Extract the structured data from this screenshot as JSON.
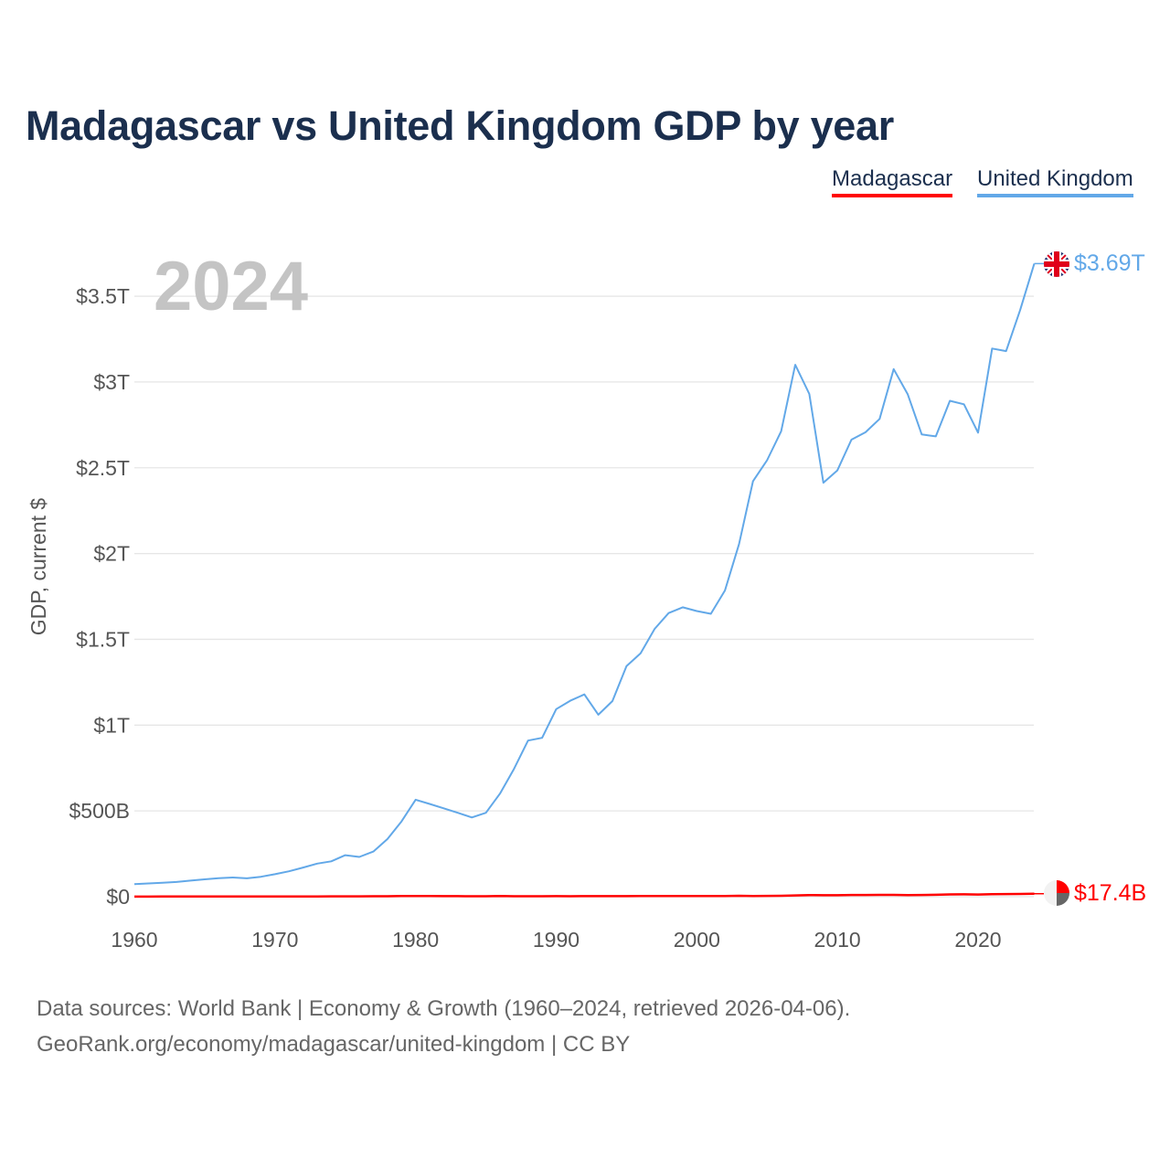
{
  "title": "Madagascar vs United Kingdom GDP by year",
  "legend": [
    {
      "name": "Madagascar",
      "color": "#ff0000"
    },
    {
      "name": "United Kingdom",
      "color": "#62a8e8"
    }
  ],
  "footer": {
    "line1": "Data sources: World Bank | Economy & Growth (1960–2024, retrieved 2026-04-06).",
    "line2": "GeoRank.org/economy/madagascar/united-kingdom | CC BY"
  },
  "chart_data": {
    "type": "line",
    "title": "Madagascar vs United Kingdom GDP by year",
    "year_label": "2024",
    "xlabel": "",
    "ylabel": "GDP, current $",
    "xlim": [
      1960,
      2024
    ],
    "ylim": [
      0,
      3.7
    ],
    "y_unit": "trillion USD",
    "x_ticks": [
      "1960",
      "1970",
      "1980",
      "1990",
      "2000",
      "2010",
      "2020"
    ],
    "y_ticks": [
      {
        "value": 0,
        "label": "$0"
      },
      {
        "value": 0.5,
        "label": "$500B"
      },
      {
        "value": 1,
        "label": "$1T"
      },
      {
        "value": 1.5,
        "label": "$1.5T"
      },
      {
        "value": 2,
        "label": "$2T"
      },
      {
        "value": 2.5,
        "label": "$2.5T"
      },
      {
        "value": 3,
        "label": "$3T"
      },
      {
        "value": 3.5,
        "label": "$3.5T"
      }
    ],
    "grid": true,
    "legend_position": "top-right",
    "start_year": 1960,
    "series": [
      {
        "name": "United Kingdom",
        "color": "#62a8e8",
        "end_label": "$3.69T",
        "values": [
          0.073,
          0.077,
          0.081,
          0.086,
          0.094,
          0.101,
          0.108,
          0.112,
          0.107,
          0.116,
          0.131,
          0.148,
          0.17,
          0.193,
          0.206,
          0.242,
          0.232,
          0.263,
          0.336,
          0.439,
          0.565,
          0.541,
          0.515,
          0.489,
          0.462,
          0.489,
          0.601,
          0.745,
          0.91,
          0.926,
          1.093,
          1.142,
          1.179,
          1.061,
          1.14,
          1.344,
          1.419,
          1.561,
          1.653,
          1.687,
          1.665,
          1.649,
          1.785,
          2.055,
          2.422,
          2.544,
          2.713,
          3.1,
          2.93,
          2.413,
          2.485,
          2.664,
          2.707,
          2.785,
          3.075,
          2.928,
          2.694,
          2.683,
          2.89,
          2.87,
          2.705,
          3.195,
          3.18,
          3.42,
          3.69
        ]
      },
      {
        "name": "Madagascar",
        "color": "#ff0000",
        "end_label": "$17.4B",
        "values": [
          0.0007,
          0.0007,
          0.0008,
          0.0008,
          0.0008,
          0.0009,
          0.0009,
          0.001,
          0.001,
          0.0011,
          0.0011,
          0.0012,
          0.0014,
          0.0017,
          0.0019,
          0.0023,
          0.0023,
          0.0024,
          0.0029,
          0.0037,
          0.004,
          0.0035,
          0.0034,
          0.0034,
          0.0029,
          0.0029,
          0.0036,
          0.0027,
          0.0027,
          0.0027,
          0.0031,
          0.0026,
          0.003,
          0.0034,
          0.003,
          0.0032,
          0.004,
          0.0035,
          0.0037,
          0.0037,
          0.0039,
          0.0045,
          0.0044,
          0.0055,
          0.0044,
          0.005,
          0.0054,
          0.0074,
          0.0094,
          0.0086,
          0.0087,
          0.0099,
          0.0099,
          0.0106,
          0.0107,
          0.0098,
          0.01,
          0.0111,
          0.0134,
          0.0141,
          0.013,
          0.0145,
          0.0153,
          0.016,
          0.0174
        ]
      }
    ]
  }
}
